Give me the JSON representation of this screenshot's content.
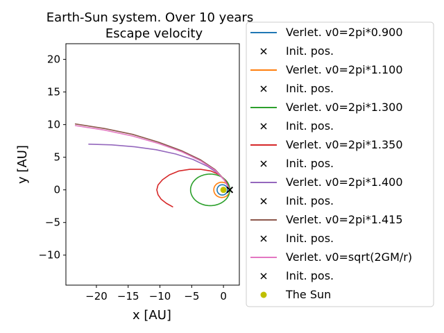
{
  "chart_data": {
    "type": "line",
    "title": "Earth-Sun system. Over 10 years\nEscape velocity",
    "title_lines": [
      "Earth-Sun system. Over 10 years",
      "Escape velocity"
    ],
    "xlabel": "x [AU]",
    "ylabel": "y [AU]",
    "xlim": [
      -24.8,
      2.5
    ],
    "ylim": [
      -14.6,
      22.4
    ],
    "xticks": [
      -20,
      -15,
      -10,
      -5,
      0
    ],
    "xtick_labels": [
      "−20",
      "−15",
      "−10",
      "−5",
      "0"
    ],
    "yticks": [
      -10,
      -5,
      0,
      5,
      10,
      15,
      20
    ],
    "ytick_labels": [
      "−10",
      "−5",
      "0",
      "5",
      "10",
      "15",
      "20"
    ],
    "grid": false,
    "legend_position": "right",
    "series": [
      {
        "name": "Verlet. v0=2pi*0.900",
        "color": "#1f77b4",
        "kind": "ellipse",
        "cx": -0.18,
        "cy": 0,
        "a": 0.82,
        "b": 0.79
      },
      {
        "name": "Verlet. v0=2pi*1.100",
        "color": "#ff7f0e",
        "kind": "ellipse",
        "cx": -0.26,
        "cy": 0,
        "a": 1.26,
        "b": 1.17
      },
      {
        "name": "Verlet. v0=2pi*1.300",
        "color": "#2ca02c",
        "kind": "ellipse",
        "cx": -2.09,
        "cy": 0,
        "a": 3.09,
        "b": 2.42
      },
      {
        "name": "Verlet. v0=2pi*1.350",
        "color": "#d62728",
        "kind": "path",
        "x": [
          1.0,
          0.4,
          -0.6,
          -2.0,
          -3.6,
          -5.3,
          -7.0,
          -8.5,
          -9.6,
          -10.3,
          -10.5,
          -10.3,
          -9.8,
          -9.0,
          -8.0
        ],
        "y": [
          0.0,
          1.3,
          2.3,
          2.9,
          3.15,
          3.15,
          2.9,
          2.3,
          1.55,
          0.75,
          0.0,
          -0.75,
          -1.45,
          -2.05,
          -2.6
        ]
      },
      {
        "name": "Verlet. v0=2pi*1.400",
        "color": "#9467bd",
        "kind": "path",
        "x": [
          1.0,
          0.3,
          -0.8,
          -2.5,
          -4.8,
          -7.5,
          -10.6,
          -14.0,
          -17.6,
          -21.2
        ],
        "y": [
          0.0,
          1.3,
          2.5,
          3.6,
          4.65,
          5.5,
          6.15,
          6.6,
          6.9,
          7.0
        ]
      },
      {
        "name": "Verlet. v0=2pi*1.415",
        "color": "#8c564b",
        "kind": "path",
        "x": [
          1.0,
          0.1,
          -1.3,
          -3.6,
          -6.6,
          -10.2,
          -14.3,
          -18.7,
          -23.3
        ],
        "y": [
          0.0,
          1.6,
          3.1,
          4.6,
          6.0,
          7.3,
          8.5,
          9.4,
          10.1
        ]
      },
      {
        "name": "Verlet. v0=sqrt(2GM/r)",
        "color": "#e377c2",
        "kind": "path",
        "x": [
          1.0,
          0.1,
          -1.3,
          -3.6,
          -6.6,
          -10.2,
          -14.3,
          -18.7,
          -23.3
        ],
        "y": [
          0.0,
          1.55,
          3.0,
          4.45,
          5.85,
          7.1,
          8.25,
          9.15,
          9.85
        ]
      }
    ],
    "initial_position": {
      "x": 1.0,
      "y": 0.0,
      "name": "Init. pos.",
      "color": "#000000"
    },
    "sun": {
      "x": 0.0,
      "y": 0.0,
      "name": "The Sun",
      "color": "#bfbf00"
    },
    "legend": [
      {
        "label": "Verlet. v0=2pi*0.900",
        "kind": "line",
        "color": "#1f77b4"
      },
      {
        "label": "Init. pos.",
        "kind": "x",
        "color": "#000000"
      },
      {
        "label": "Verlet. v0=2pi*1.100",
        "kind": "line",
        "color": "#ff7f0e"
      },
      {
        "label": "Init. pos.",
        "kind": "x",
        "color": "#000000"
      },
      {
        "label": "Verlet. v0=2pi*1.300",
        "kind": "line",
        "color": "#2ca02c"
      },
      {
        "label": "Init. pos.",
        "kind": "x",
        "color": "#000000"
      },
      {
        "label": "Verlet. v0=2pi*1.350",
        "kind": "line",
        "color": "#d62728"
      },
      {
        "label": "Init. pos.",
        "kind": "x",
        "color": "#000000"
      },
      {
        "label": "Verlet. v0=2pi*1.400",
        "kind": "line",
        "color": "#9467bd"
      },
      {
        "label": "Init. pos.",
        "kind": "x",
        "color": "#000000"
      },
      {
        "label": "Verlet. v0=2pi*1.415",
        "kind": "line",
        "color": "#8c564b"
      },
      {
        "label": "Init. pos.",
        "kind": "x",
        "color": "#000000"
      },
      {
        "label": "Verlet. v0=sqrt(2GM/r)",
        "kind": "line",
        "color": "#e377c2"
      },
      {
        "label": "Init. pos.",
        "kind": "x",
        "color": "#000000"
      },
      {
        "label": "The Sun",
        "kind": "dot",
        "color": "#bfbf00"
      }
    ]
  }
}
